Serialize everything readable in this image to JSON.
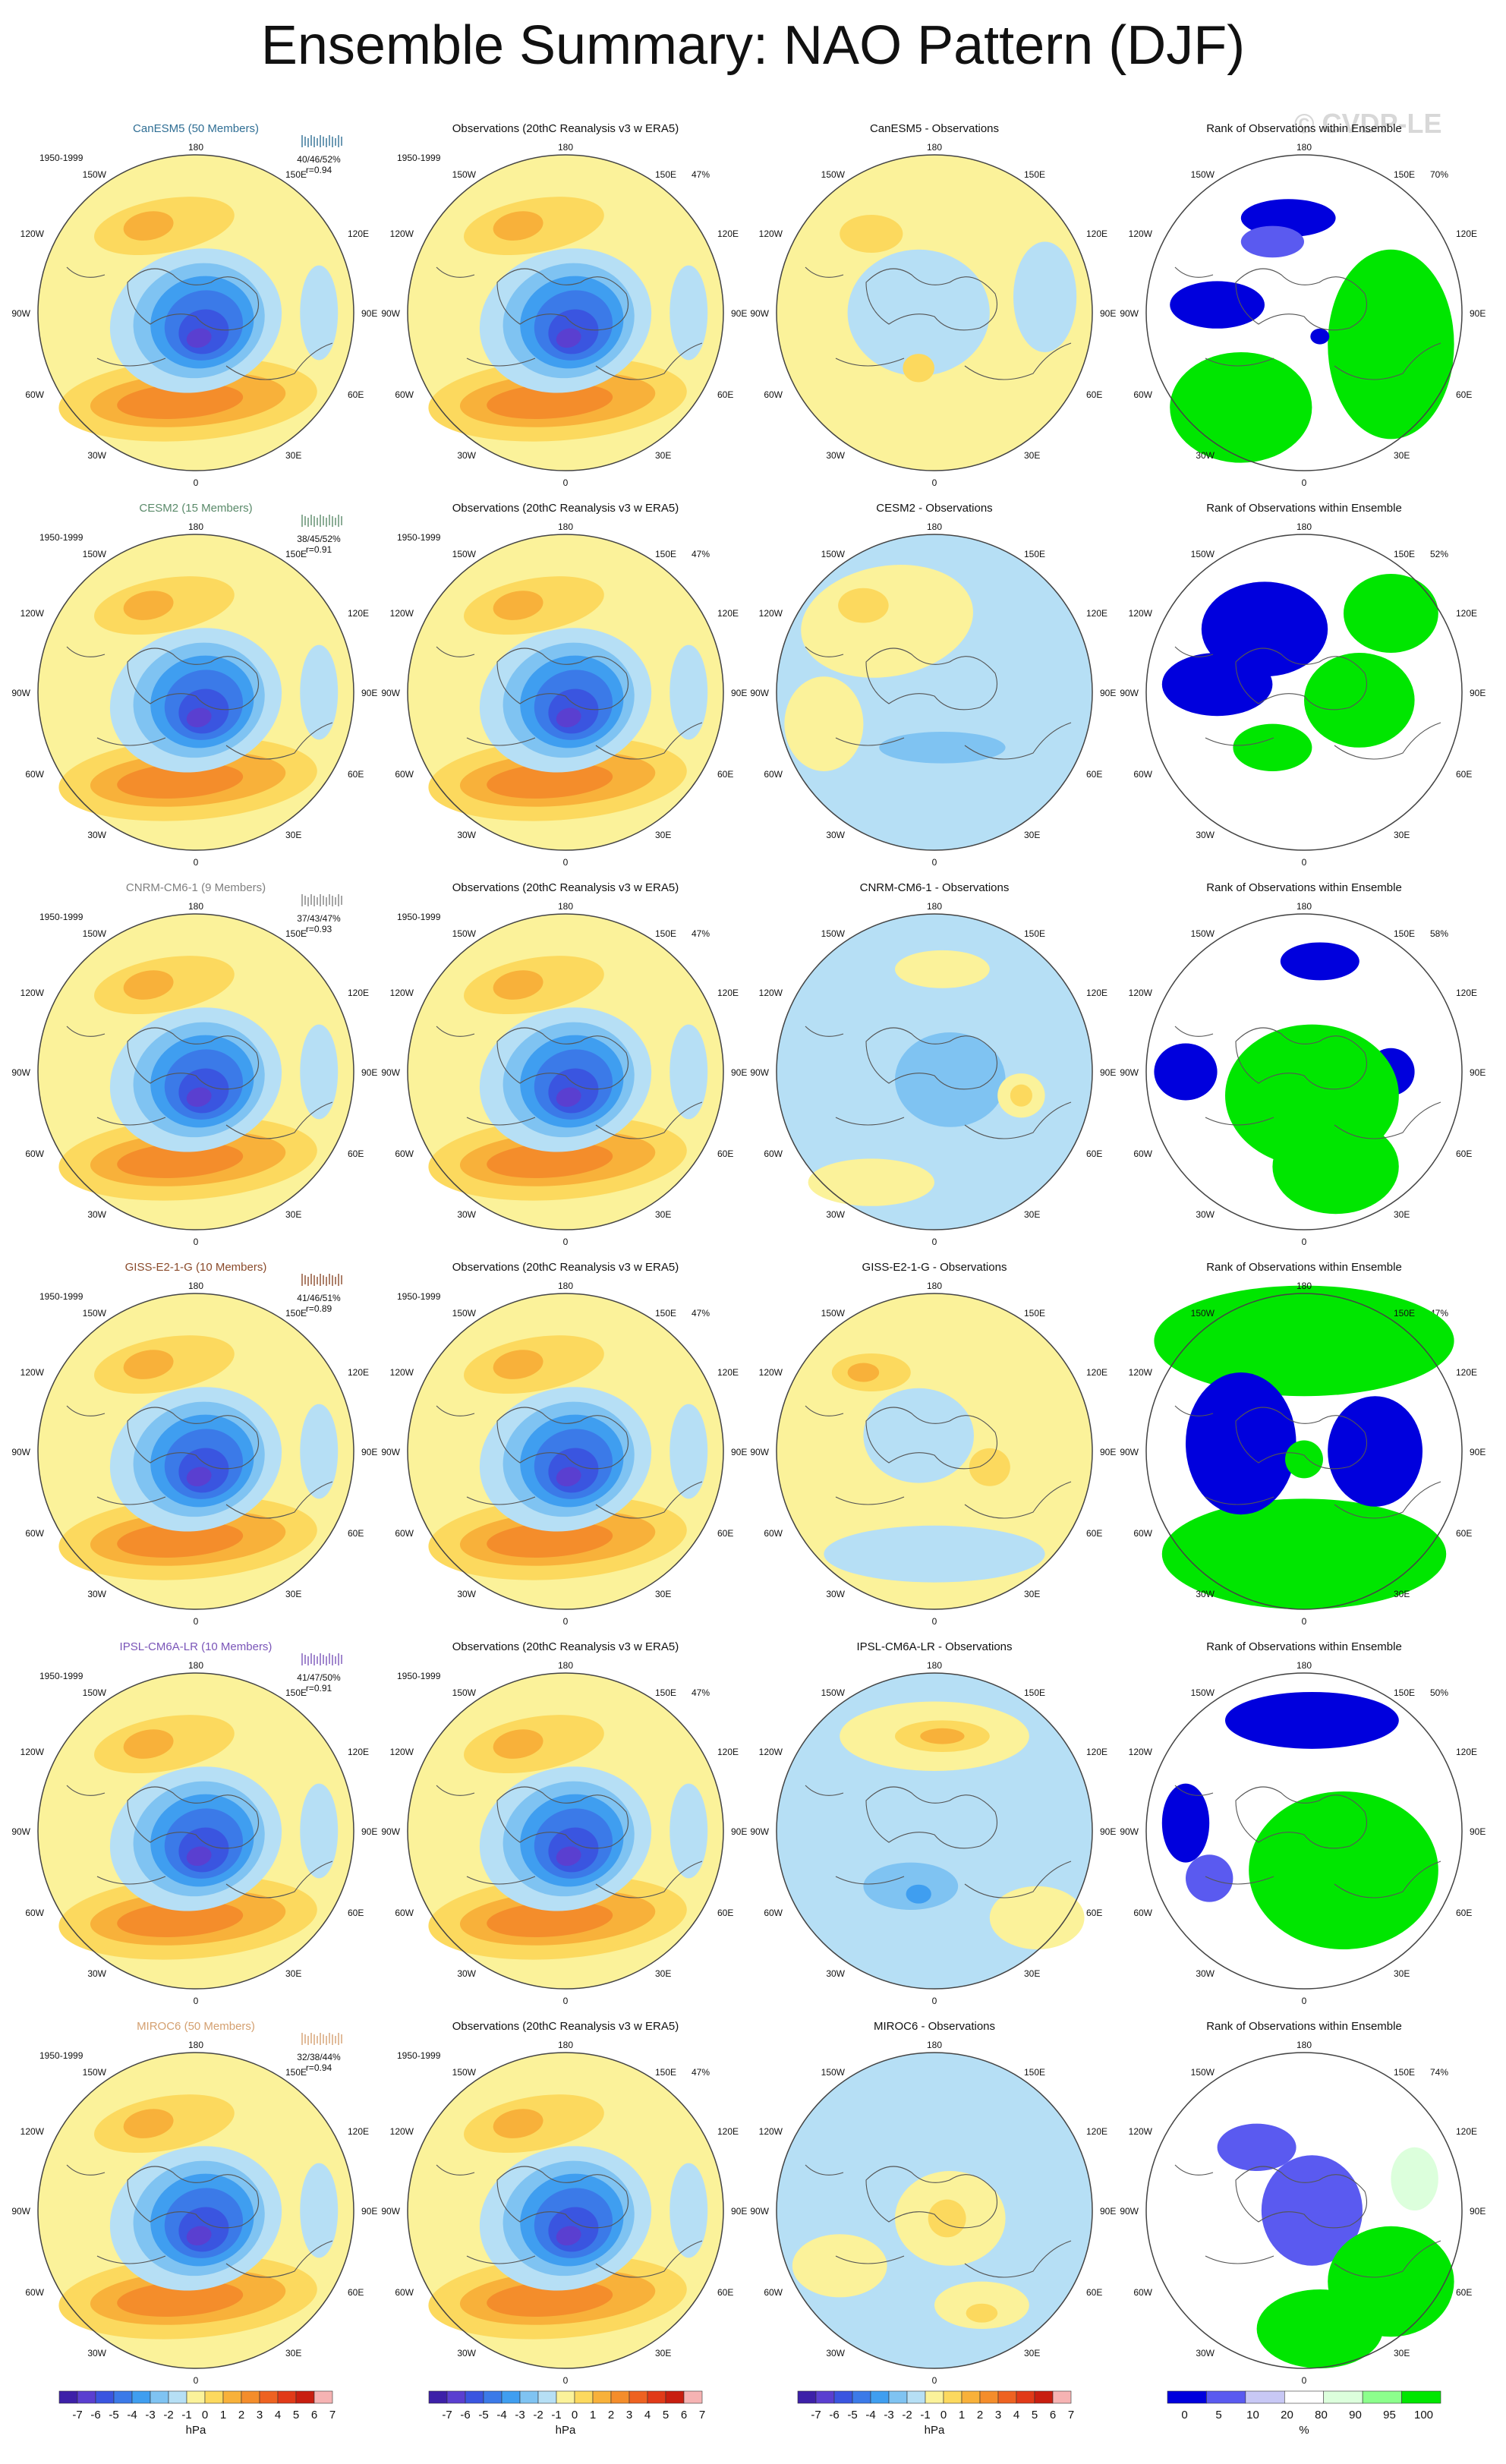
{
  "title": "Ensemble Summary: NAO Pattern (DJF)",
  "watermark": "© CVDP-LE",
  "colors": {
    "neg": [
      "#3d20a8",
      "#5a3fd0",
      "#3a55e0",
      "#3b7ae8",
      "#3f9ef0",
      "#7fc3f2",
      "#b6dff5"
    ],
    "pos": [
      "#fbf29a",
      "#fcd95e",
      "#f8b13a",
      "#f48d2b",
      "#ee6221",
      "#e13a18",
      "#c81e10",
      "#f6b3b3"
    ],
    "rank": [
      "#0000dd",
      "#5a5af0",
      "#c8c8f5",
      "#ffffff",
      "#dcffdc",
      "#8cff8c",
      "#00e600"
    ]
  },
  "rows": [
    {
      "model": "CanESM5 (50 Members)",
      "model_color": "#2f6e94",
      "period": "1950-1999",
      "stats": "40/46/52%",
      "r": "r=0.94",
      "obs_title": "Observations (20thC Reanalysis v3 w ERA5)",
      "obs_pct": "47%",
      "diff_title": "CanESM5 - Observations",
      "rank_title": "Rank of Observations within Ensemble",
      "rank_pct": "70%"
    },
    {
      "model": "CESM2 (15 Members)",
      "model_color": "#5a8a6a",
      "period": "1950-1999",
      "stats": "38/45/52%",
      "r": "r=0.91",
      "obs_title": "Observations (20thC Reanalysis v3 w ERA5)",
      "obs_pct": "47%",
      "diff_title": "CESM2 - Observations",
      "rank_title": "Rank of Observations within Ensemble",
      "rank_pct": "52%"
    },
    {
      "model": "CNRM-CM6-1 (9 Members)",
      "model_color": "#808080",
      "period": "1950-1999",
      "stats": "37/43/47%",
      "r": "r=0.93",
      "obs_title": "Observations (20thC Reanalysis v3 w ERA5)",
      "obs_pct": "47%",
      "diff_title": "CNRM-CM6-1 - Observations",
      "rank_title": "Rank of Observations within Ensemble",
      "rank_pct": "58%"
    },
    {
      "model": "GISS-E2-1-G (10 Members)",
      "model_color": "#8a4a2a",
      "period": "1950-1999",
      "stats": "41/46/51%",
      "r": "r=0.89",
      "obs_title": "Observations (20thC Reanalysis v3 w ERA5)",
      "obs_pct": "47%",
      "diff_title": "GISS-E2-1-G - Observations",
      "rank_title": "Rank of Observations within Ensemble",
      "rank_pct": "47%"
    },
    {
      "model": "IPSL-CM6A-LR (10 Members)",
      "model_color": "#7a55b8",
      "period": "1950-1999",
      "stats": "41/47/50%",
      "r": "r=0.91",
      "obs_title": "Observations (20thC Reanalysis v3 w ERA5)",
      "obs_pct": "47%",
      "diff_title": "IPSL-CM6A-LR - Observations",
      "rank_title": "Rank of Observations within Ensemble",
      "rank_pct": "50%"
    },
    {
      "model": "MIROC6 (50 Members)",
      "model_color": "#d4a070",
      "period": "1950-1999",
      "stats": "32/38/44%",
      "r": "r=0.94",
      "obs_title": "Observations (20thC Reanalysis v3 w ERA5)",
      "obs_pct": "47%",
      "diff_title": "MIROC6 - Observations",
      "rank_title": "Rank of Observations within Ensemble",
      "rank_pct": "74%"
    }
  ],
  "lon_labels": {
    "top": "180",
    "bottom": "0",
    "l1": "150W",
    "l2": "120W",
    "l3": "90W",
    "l4": "60W",
    "l5": "30W",
    "r1": "150E",
    "r2": "120E",
    "r3": "90E",
    "r4": "60E",
    "r5": "30E"
  },
  "colorbars": [
    {
      "ticks": [
        "-7",
        "-6",
        "-5",
        "-4",
        "-3",
        "-2",
        "-1",
        "0",
        "1",
        "2",
        "3",
        "4",
        "5",
        "6",
        "7"
      ],
      "unit": "hPa"
    },
    {
      "ticks": [
        "-7",
        "-6",
        "-5",
        "-4",
        "-3",
        "-2",
        "-1",
        "0",
        "1",
        "2",
        "3",
        "4",
        "5",
        "6",
        "7"
      ],
      "unit": "hPa"
    },
    {
      "ticks": [
        "-7",
        "-6",
        "-5",
        "-4",
        "-3",
        "-2",
        "-1",
        "0",
        "1",
        "2",
        "3",
        "4",
        "5",
        "6",
        "7"
      ],
      "unit": "hPa"
    },
    {
      "ticks": [
        "0",
        "5",
        "10",
        "20",
        "80",
        "90",
        "95",
        "100"
      ],
      "unit": "%"
    }
  ]
}
